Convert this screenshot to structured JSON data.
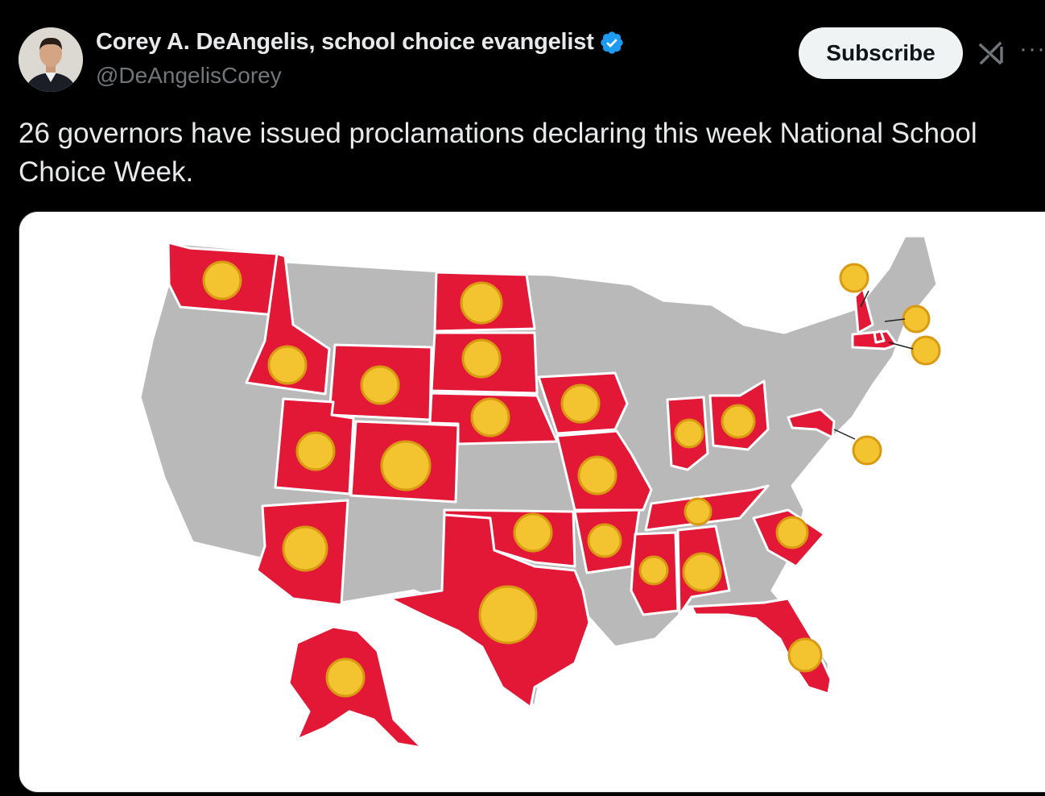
{
  "author": {
    "name": "Corey A. DeAngelis, school choice evangelist",
    "handle": "@DeAngelisCorey",
    "verified": true,
    "verified_icon": "verified-badge-icon",
    "accent_color": "#1d9bf0"
  },
  "actions": {
    "subscribe_label": "Subscribe",
    "grok_icon": "grok-icon",
    "more_label": "···"
  },
  "tweet": {
    "text": "26 governors have issued proclamations declaring this week National School Choice Week."
  },
  "map": {
    "highlight_color": "#e31837",
    "base_color": "#b9b9b9",
    "seal_color": "#f4c430",
    "highlighted_states": [
      "WA",
      "ID",
      "WY",
      "UT",
      "CO",
      "AZ",
      "ND",
      "SD",
      "NE",
      "TX",
      "OK",
      "IA",
      "MO",
      "AR",
      "MS",
      "AL",
      "TN",
      "IN",
      "OH",
      "SC",
      "FL",
      "NH",
      "MA",
      "RI",
      "MD",
      "AK"
    ]
  }
}
